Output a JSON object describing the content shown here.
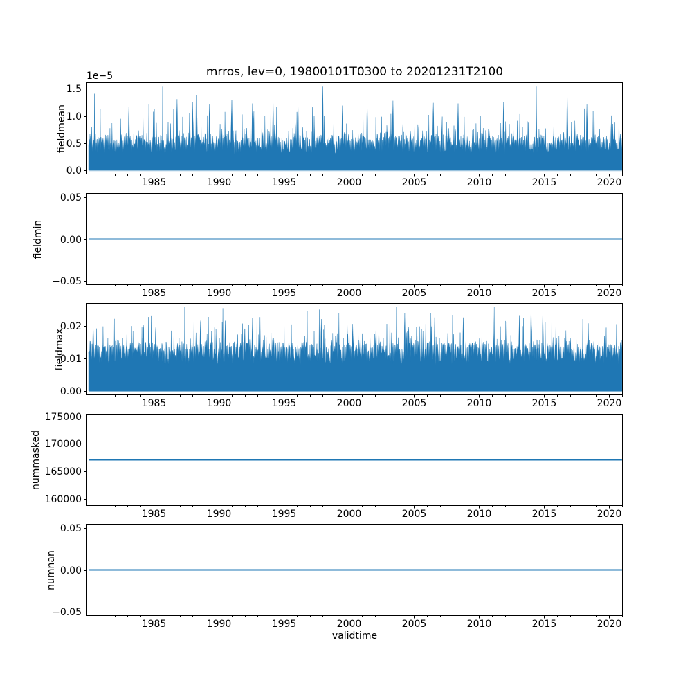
{
  "figure": {
    "title": "mrros, lev=0, 19800101T0300 to 20201231T2100",
    "xlabel": "validtime",
    "accent_color": "#1f77b4",
    "background_color": "#ffffff",
    "spine_color": "#000000"
  },
  "x_axis": {
    "label": "validtime",
    "lim": [
      1979.84,
      2021.06
    ],
    "data_range": [
      1980.0,
      2021.0
    ],
    "major_ticks": [
      1985,
      1990,
      1995,
      2000,
      2005,
      2010,
      2015,
      2020
    ],
    "major_tick_labels": [
      "1985",
      "1990",
      "1995",
      "2000",
      "2005",
      "2010",
      "2015",
      "2020"
    ],
    "minor_ticks_every_year": true
  },
  "chart_data": [
    {
      "type": "area",
      "name": "fieldmean",
      "ylabel": "fieldmean",
      "offset_text": "1e−5",
      "unit_scale": "1e-5",
      "ylim": [
        -0.08,
        1.62
      ],
      "yticks": [
        0.0,
        0.5,
        1.0,
        1.5
      ],
      "ytick_labels": [
        "0.0",
        "0.5",
        "1.0",
        "1.5"
      ],
      "summary": {
        "min": 0.0,
        "typical_range": [
          0.2,
          0.8
        ],
        "max": 1.54
      },
      "noise": {
        "seed": 12345,
        "n": 1550,
        "base": 0.42,
        "amp": 0.17,
        "jitter": 0.3,
        "spike_prob": 0.3,
        "spike_scale": 0.18,
        "floor": 0.05,
        "vmax": 1.54
      },
      "peaks": [
        {
          "x": 1983.1,
          "y": 1.17
        },
        {
          "x": 1986.8,
          "y": 1.31
        },
        {
          "x": 1988.0,
          "y": 1.25
        },
        {
          "x": 1989.3,
          "y": 1.21
        },
        {
          "x": 1991.0,
          "y": 1.3
        },
        {
          "x": 1992.6,
          "y": 1.23
        },
        {
          "x": 1994.2,
          "y": 1.27
        },
        {
          "x": 1996.1,
          "y": 1.26
        },
        {
          "x": 1998.0,
          "y": 1.54
        },
        {
          "x": 1999.5,
          "y": 1.19
        },
        {
          "x": 2001.4,
          "y": 1.22
        },
        {
          "x": 2003.4,
          "y": 1.28
        },
        {
          "x": 2006.5,
          "y": 1.24
        },
        {
          "x": 2008.4,
          "y": 1.23
        },
        {
          "x": 2011.9,
          "y": 1.25
        },
        {
          "x": 2014.4,
          "y": 1.2
        },
        {
          "x": 2016.8,
          "y": 1.38
        },
        {
          "x": 2018.3,
          "y": 1.21
        }
      ]
    },
    {
      "type": "line",
      "name": "fieldmin",
      "ylabel": "fieldmin",
      "constant_value": 0.0,
      "ylim": [
        -0.055,
        0.055
      ],
      "yticks": [
        -0.05,
        0.0,
        0.05
      ],
      "ytick_labels": [
        "−0.05",
        "0.00",
        "0.05"
      ]
    },
    {
      "type": "area",
      "name": "fieldmax",
      "ylabel": "fieldmax",
      "ylim": [
        -0.00128,
        0.0269
      ],
      "yticks": [
        0.0,
        0.01,
        0.02
      ],
      "ytick_labels": [
        "0.00",
        "0.01",
        "0.02"
      ],
      "summary": {
        "min": 0.0,
        "typical_range": [
          0.005,
          0.016
        ],
        "max": 0.0258
      },
      "noise": {
        "seed": 98765,
        "n": 1550,
        "base": 0.0105,
        "amp": 0.003,
        "jitter": 0.006,
        "spike_prob": 0.3,
        "spike_scale": 0.0032,
        "floor": 0.0015,
        "vmax": 0.0258
      },
      "peaks": [
        {
          "x": 1984.2,
          "y": 0.0202
        },
        {
          "x": 1988.6,
          "y": 0.021
        },
        {
          "x": 1990.5,
          "y": 0.0215
        },
        {
          "x": 1992.6,
          "y": 0.0223
        },
        {
          "x": 1997.9,
          "y": 0.022
        },
        {
          "x": 2000.3,
          "y": 0.0205
        },
        {
          "x": 2004.3,
          "y": 0.0238
        },
        {
          "x": 2006.6,
          "y": 0.0225
        },
        {
          "x": 2008.8,
          "y": 0.0225
        },
        {
          "x": 2013.1,
          "y": 0.0232
        },
        {
          "x": 2014.0,
          "y": 0.0258
        },
        {
          "x": 2014.9,
          "y": 0.0245
        },
        {
          "x": 2018.4,
          "y": 0.0207
        }
      ]
    },
    {
      "type": "line",
      "name": "nummasked",
      "ylabel": "nummasked",
      "constant_value": 167100,
      "ylim": [
        158745,
        175455
      ],
      "yticks": [
        160000,
        165000,
        170000,
        175000
      ],
      "ytick_labels": [
        "160000",
        "165000",
        "170000",
        "175000"
      ]
    },
    {
      "type": "line",
      "name": "numnan",
      "ylabel": "numnan",
      "constant_value": 0.0,
      "ylim": [
        -0.055,
        0.055
      ],
      "yticks": [
        -0.05,
        0.0,
        0.05
      ],
      "ytick_labels": [
        "−0.05",
        "0.00",
        "0.05"
      ]
    }
  ]
}
